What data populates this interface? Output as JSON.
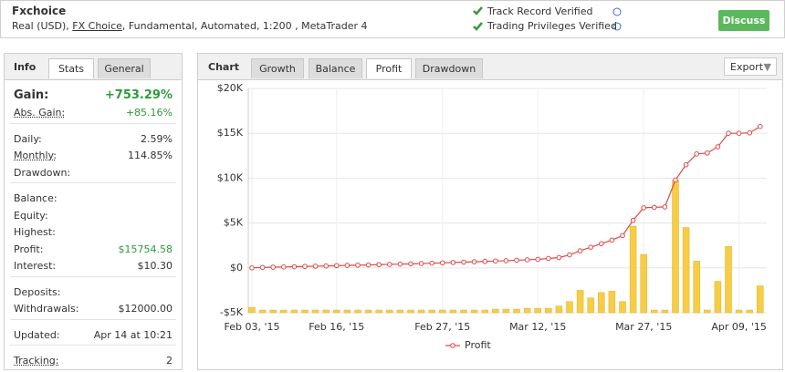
{
  "header": {
    "title": "Fxchoice",
    "subtitle": [
      "Real (USD), ",
      "FX Choice",
      ", Fundamental, Automated, 1:200 , MetaTrader 4"
    ],
    "verifications": [
      "Track Record Verified",
      "Trading Privileges Verified"
    ],
    "button": "Discuss"
  },
  "info": {
    "heading": "Info",
    "tabs": [
      "Stats",
      "General"
    ],
    "groups": [
      [
        {
          "label": "Gain:",
          "value": "+753.29%",
          "color": "#2e9b3a",
          "big": true
        },
        {
          "label": "Abs. Gain:",
          "value": "+85.16%",
          "color": "#2e9b3a",
          "underlined": true
        }
      ],
      [
        {
          "label": "Daily:",
          "value": "2.59%"
        },
        {
          "label": "Monthly:",
          "value": "114.85%",
          "underlined": true
        },
        {
          "label": "Drawdown:"
        }
      ],
      [
        {
          "label": "Balance:"
        },
        {
          "label": "Equity:"
        },
        {
          "label": "Highest:"
        },
        {
          "label": "Profit:",
          "value": "$15754.58",
          "color": "#2e9b3a"
        },
        {
          "label": "Interest:",
          "value": "$10.30"
        }
      ],
      [
        {
          "label": "Deposits:"
        },
        {
          "label": "Withdrawals:",
          "value": "$12000.00"
        }
      ],
      [
        {
          "label": "Updated:",
          "value": "Apr 14 at 10:21"
        }
      ],
      [
        {
          "label": "Tracking:",
          "value": "2",
          "underlined": true
        }
      ]
    ]
  },
  "chart_panel": {
    "heading": "Chart",
    "tabs": [
      "Growth",
      "Balance",
      "Profit",
      "Drawdown"
    ],
    "active_tab": 2,
    "export": "Export"
  },
  "chart_data": {
    "type": "line",
    "categories": [
      "Feb 03, '15",
      null,
      null,
      null,
      null,
      null,
      null,
      null,
      "Feb 16, '15",
      null,
      null,
      null,
      null,
      null,
      null,
      null,
      null,
      null,
      "Feb 27, '15",
      null,
      null,
      null,
      null,
      null,
      null,
      null,
      null,
      "Mar 12, '15",
      null,
      null,
      null,
      null,
      null,
      null,
      null,
      null,
      null,
      "Mar 27, '15",
      null,
      null,
      null,
      null,
      null,
      null,
      null,
      null,
      "Apr 09, '15",
      null,
      null
    ],
    "series": [
      {
        "name": "Profit",
        "color": "#e04848",
        "values": [
          0,
          50,
          80,
          100,
          130,
          160,
          190,
          210,
          250,
          280,
          300,
          330,
          360,
          390,
          420,
          450,
          480,
          520,
          560,
          600,
          640,
          680,
          720,
          760,
          800,
          850,
          900,
          950,
          1050,
          1150,
          1450,
          1900,
          2300,
          2700,
          3100,
          3600,
          5300,
          6700,
          6750,
          6800,
          9800,
          11500,
          12700,
          12800,
          13500,
          15000,
          15000,
          15050,
          15750
        ]
      },
      {
        "type": "bar",
        "axis": "y2",
        "color": "#f6cd45",
        "values": [
          120,
          60,
          60,
          60,
          60,
          60,
          60,
          60,
          60,
          60,
          60,
          60,
          60,
          60,
          60,
          60,
          60,
          60,
          60,
          60,
          60,
          60,
          60,
          80,
          80,
          80,
          100,
          100,
          100,
          150,
          250,
          500,
          330,
          450,
          480,
          250,
          1930,
          1300,
          60,
          60,
          2950,
          1900,
          1150,
          60,
          700,
          1480,
          60,
          60,
          600
        ]
      }
    ],
    "ylim": [
      -5000,
      20000
    ],
    "y2lim": [
      0,
      5000
    ],
    "yticks": [
      {
        "value": -5000,
        "label": "-$5K"
      },
      {
        "value": 0,
        "label": "$0"
      },
      {
        "value": 5000,
        "label": "$5K"
      },
      {
        "value": 10000,
        "label": "$10K"
      },
      {
        "value": 15000,
        "label": "$15K"
      },
      {
        "value": 20000,
        "label": "$20K"
      }
    ],
    "grid": true
  }
}
